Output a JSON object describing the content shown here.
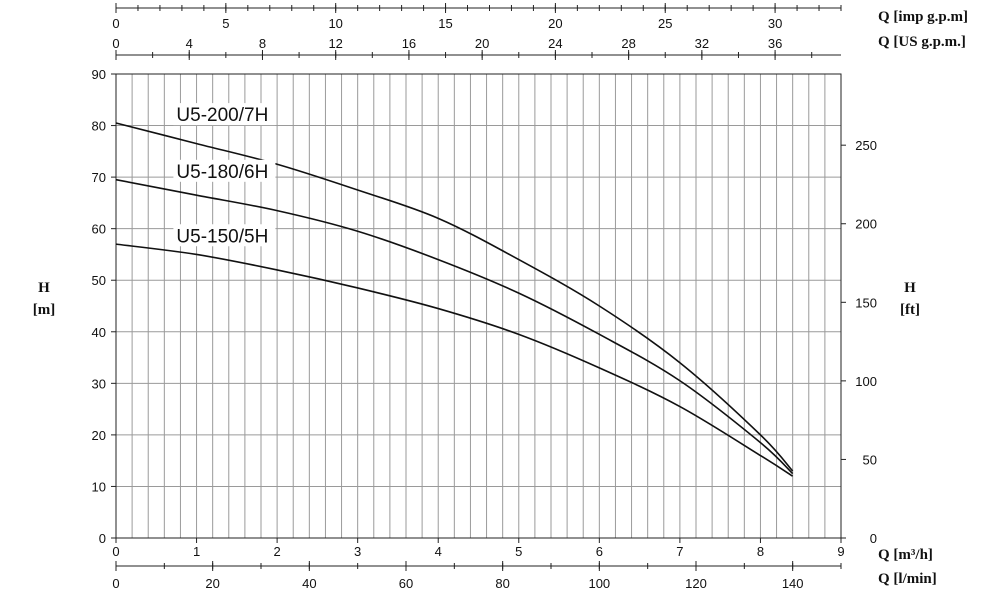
{
  "chart_data": {
    "type": "line",
    "title": "",
    "x_axes": [
      {
        "id": "m3h",
        "label": "Q [m³/h]",
        "position": "bottom",
        "range": [
          0,
          9
        ],
        "ticks": [
          0,
          1,
          2,
          3,
          4,
          5,
          6,
          7,
          8,
          9
        ]
      },
      {
        "id": "lmin",
        "label": "Q [l/min]",
        "position": "bottom",
        "range": [
          0,
          150
        ],
        "ticks": [
          0,
          20,
          40,
          60,
          80,
          100,
          120,
          140
        ]
      },
      {
        "id": "usgpm",
        "label": "Q [US g.p.m.]",
        "position": "top",
        "range": [
          0,
          39.6
        ],
        "ticks": [
          0,
          4,
          8,
          12,
          16,
          20,
          24,
          28,
          32,
          36
        ]
      },
      {
        "id": "impgpm",
        "label": "Q [imp g.p.m]",
        "position": "top",
        "range": [
          0,
          33
        ],
        "ticks": [
          0,
          5,
          10,
          15,
          20,
          25,
          30
        ]
      }
    ],
    "y_axes": [
      {
        "id": "m",
        "label": "H\n[m]",
        "label_lines": [
          "H",
          "[m]"
        ],
        "position": "left",
        "range": [
          0,
          90
        ],
        "ticks": [
          0,
          10,
          20,
          30,
          40,
          50,
          60,
          70,
          80,
          90
        ]
      },
      {
        "id": "ft",
        "label": "H\n[ft]",
        "label_lines": [
          "H",
          "[ft]"
        ],
        "position": "right",
        "range": [
          0,
          295.3
        ],
        "ticks": [
          0,
          50,
          100,
          150,
          200,
          250
        ]
      }
    ],
    "grid": true,
    "series": [
      {
        "name": "U5-200/7H",
        "x": [
          0,
          1,
          2,
          3,
          4,
          5,
          6,
          7,
          8,
          8.4
        ],
        "y": [
          80.5,
          76.5,
          72.5,
          67.5,
          62,
          54,
          45,
          34,
          20,
          13
        ]
      },
      {
        "name": "U5-180/6H",
        "x": [
          0,
          1,
          2,
          3,
          4,
          5,
          6,
          7,
          8,
          8.4
        ],
        "y": [
          69.5,
          66.5,
          63.5,
          59.5,
          54,
          47.5,
          39.5,
          30.5,
          18.5,
          12.5
        ]
      },
      {
        "name": "U5-150/5H",
        "x": [
          0,
          1,
          2,
          3,
          4,
          5,
          6,
          7,
          8,
          8.4
        ],
        "y": [
          57,
          55,
          52,
          48.5,
          44.5,
          39.5,
          33,
          25.5,
          16,
          12
        ]
      }
    ]
  }
}
